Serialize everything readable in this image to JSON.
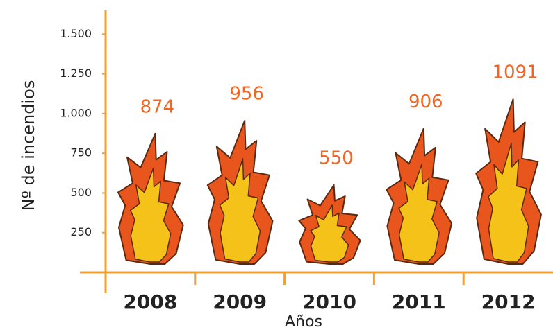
{
  "chart_data": {
    "type": "pictogram",
    "x_label": "Años",
    "y_label": "Nº de incendios",
    "categories": [
      "2008",
      "2009",
      "2010",
      "2011",
      "2012"
    ],
    "values": [
      874,
      956,
      550,
      906,
      1091
    ],
    "color": "#e8561e",
    "label_color": "#f26522",
    "axis_color": "#f0a030",
    "ylim": [
      0,
      1650
    ],
    "yticks": [
      250,
      500,
      750,
      {
        "value": 1000,
        "label": "1.000"
      },
      {
        "value": 1250,
        "label": "1.250"
      },
      {
        "value": 1500,
        "label": "1.500"
      }
    ],
    "grid": false
  }
}
